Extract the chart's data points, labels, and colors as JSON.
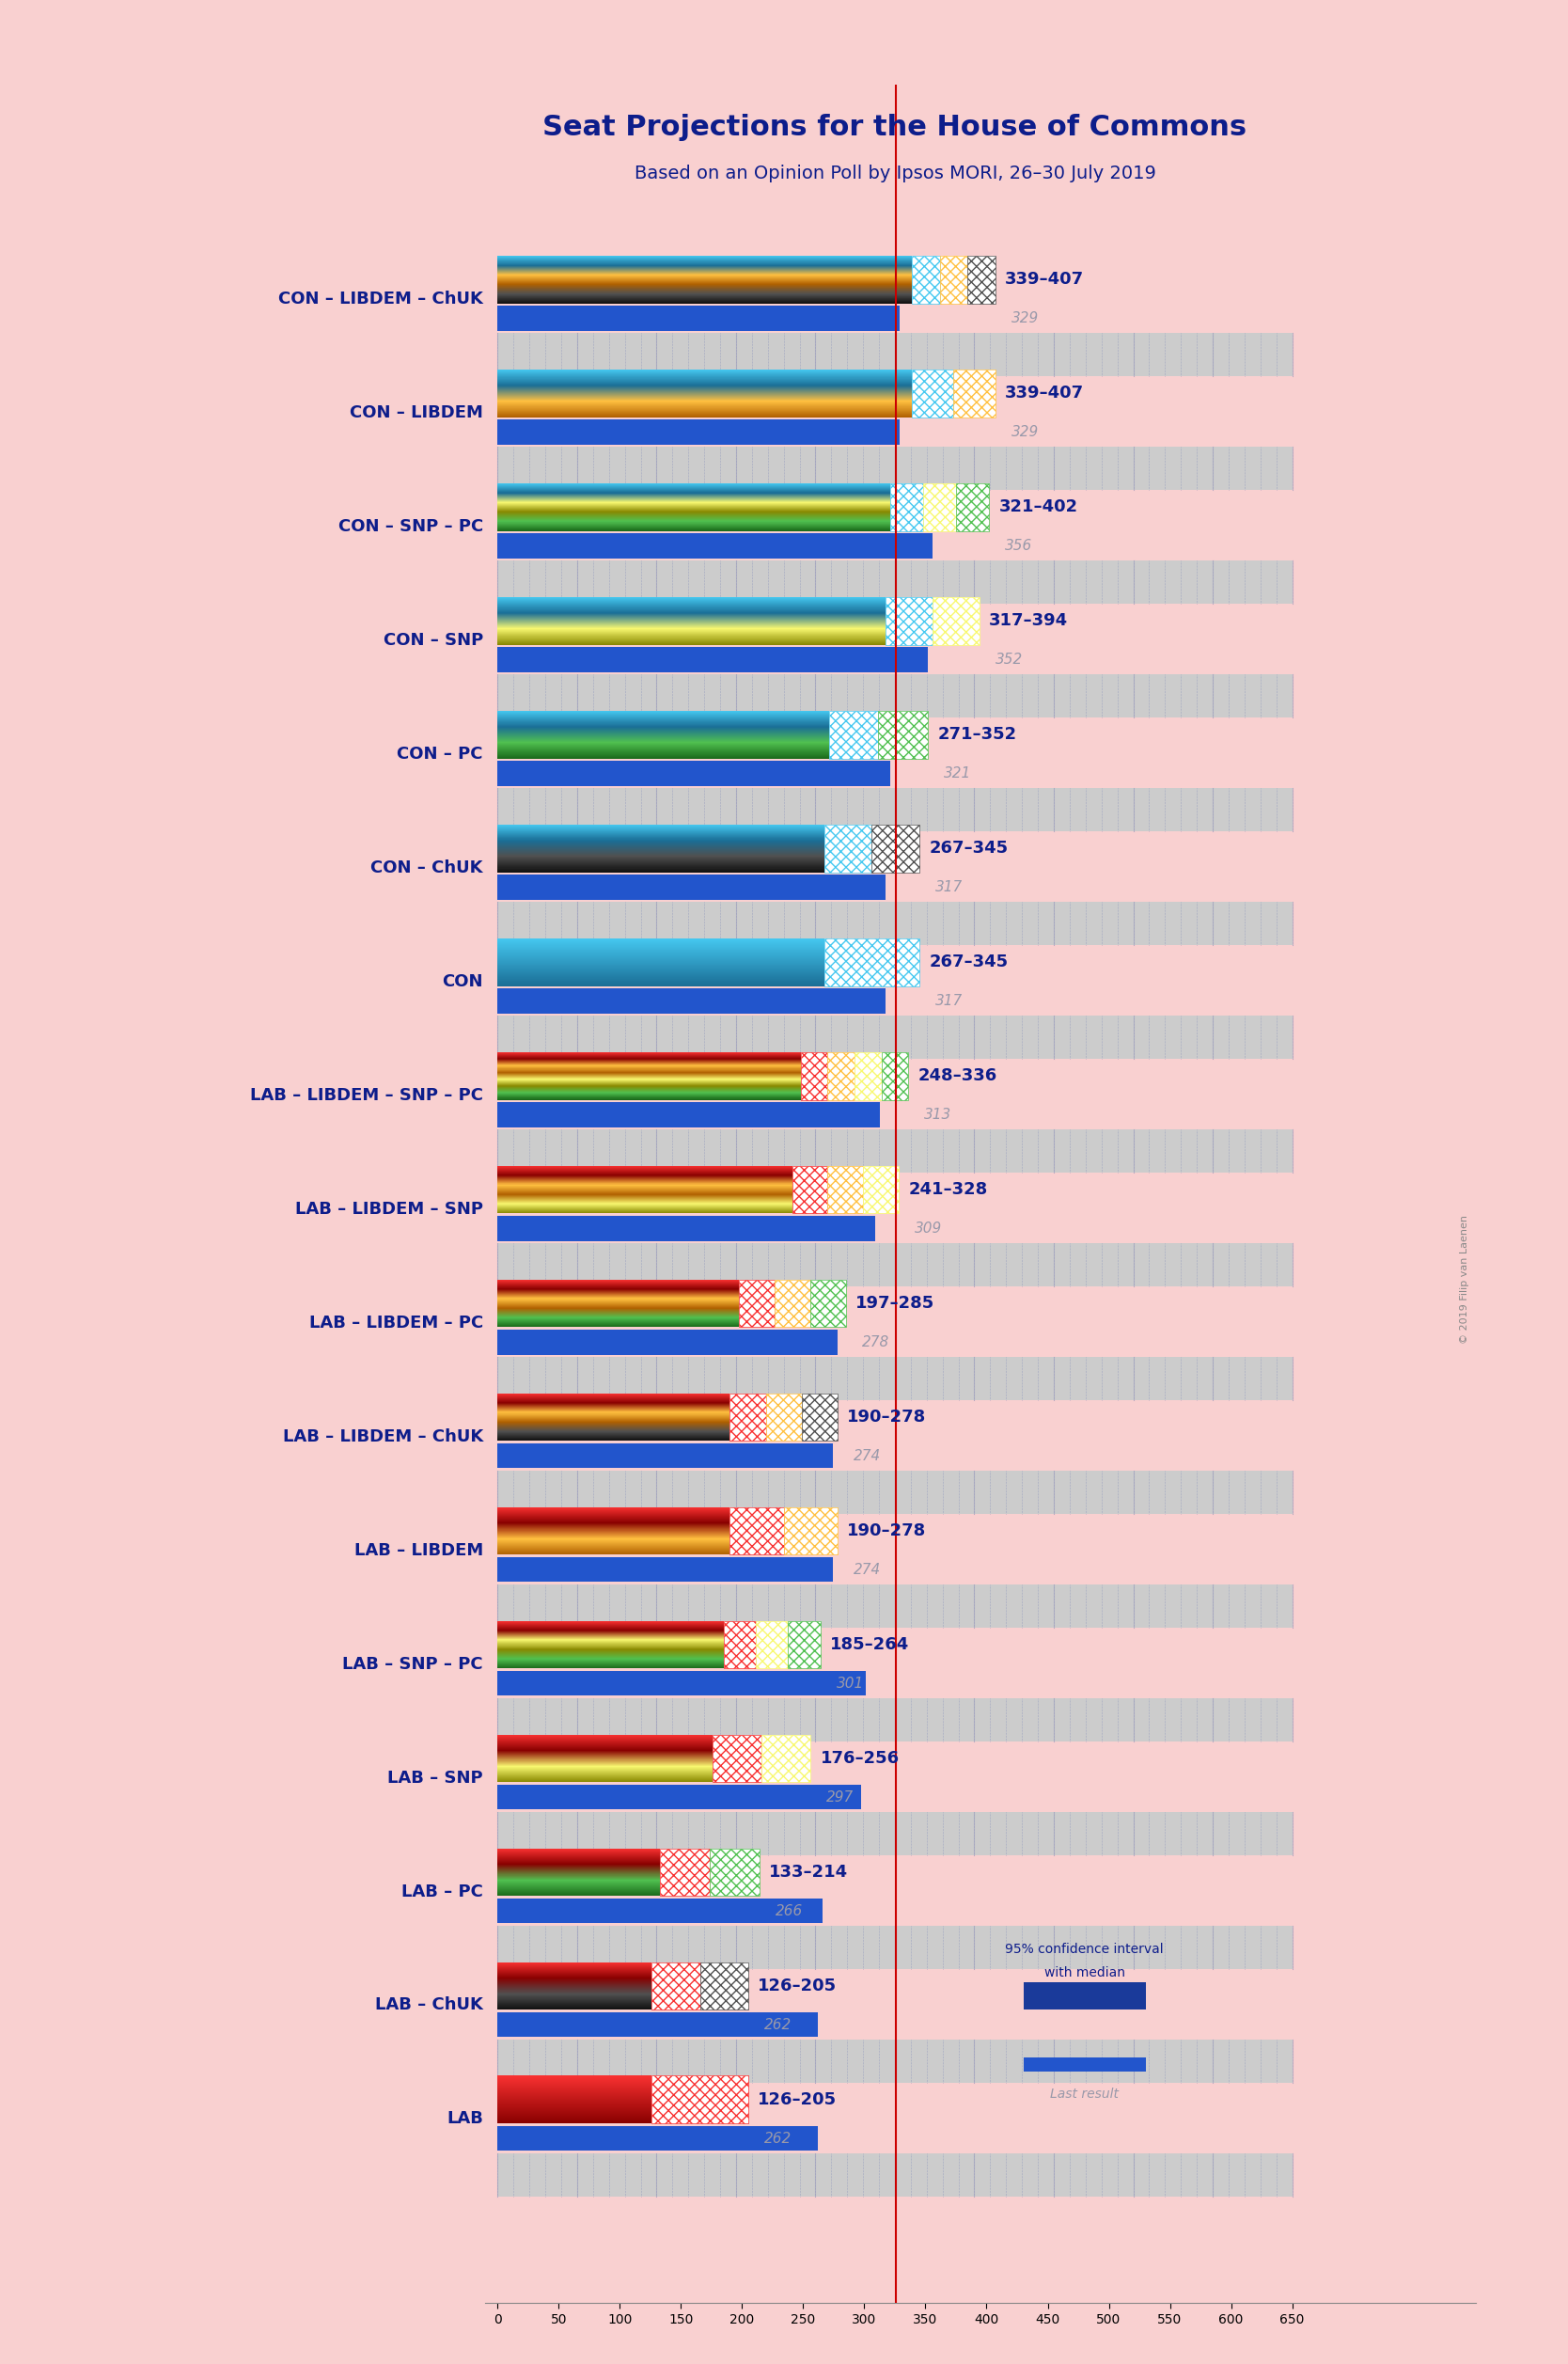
{
  "title": "Seat Projections for the House of Commons",
  "subtitle": "Based on an Opinion Poll by Ipsos MORI, 26–30 July 2019",
  "background_color": "#f9d0d0",
  "majority_line": 326,
  "axis_max": 650,
  "copyright": "© 2019 Filip van Laenen",
  "coalitions": [
    {
      "name": "CON – LIBDEM – ChUK",
      "label_range": "339–407",
      "label_median": "329",
      "ci_low": 339,
      "ci_high": 407,
      "median": 329,
      "parties": [
        "CON",
        "LIBDEM",
        "ChUK"
      ],
      "last_result": 329
    },
    {
      "name": "CON – LIBDEM",
      "label_range": "339–407",
      "label_median": "329",
      "ci_low": 339,
      "ci_high": 407,
      "median": 329,
      "parties": [
        "CON",
        "LIBDEM"
      ],
      "last_result": 329
    },
    {
      "name": "CON – SNP – PC",
      "label_range": "321–402",
      "label_median": "356",
      "ci_low": 321,
      "ci_high": 402,
      "median": 356,
      "parties": [
        "CON",
        "SNP",
        "PC"
      ],
      "last_result": 356
    },
    {
      "name": "CON – SNP",
      "label_range": "317–394",
      "label_median": "352",
      "ci_low": 317,
      "ci_high": 394,
      "median": 352,
      "parties": [
        "CON",
        "SNP"
      ],
      "last_result": 352
    },
    {
      "name": "CON – PC",
      "label_range": "271–352",
      "label_median": "321",
      "ci_low": 271,
      "ci_high": 352,
      "median": 321,
      "parties": [
        "CON",
        "PC"
      ],
      "last_result": 321
    },
    {
      "name": "CON – ChUK",
      "label_range": "267–345",
      "label_median": "317",
      "ci_low": 267,
      "ci_high": 345,
      "median": 317,
      "parties": [
        "CON",
        "ChUK"
      ],
      "last_result": 317
    },
    {
      "name": "CON",
      "label_range": "267–345",
      "label_median": "317",
      "ci_low": 267,
      "ci_high": 345,
      "median": 317,
      "parties": [
        "CON"
      ],
      "last_result": 317
    },
    {
      "name": "LAB – LIBDEM – SNP – PC",
      "label_range": "248–336",
      "label_median": "313",
      "ci_low": 248,
      "ci_high": 336,
      "median": 313,
      "parties": [
        "LAB",
        "LIBDEM",
        "SNP",
        "PC"
      ],
      "last_result": 313
    },
    {
      "name": "LAB – LIBDEM – SNP",
      "label_range": "241–328",
      "label_median": "309",
      "ci_low": 241,
      "ci_high": 328,
      "median": 309,
      "parties": [
        "LAB",
        "LIBDEM",
        "SNP"
      ],
      "last_result": 309
    },
    {
      "name": "LAB – LIBDEM – PC",
      "label_range": "197–285",
      "label_median": "278",
      "ci_low": 197,
      "ci_high": 285,
      "median": 278,
      "parties": [
        "LAB",
        "LIBDEM",
        "PC"
      ],
      "last_result": 278
    },
    {
      "name": "LAB – LIBDEM – ChUK",
      "label_range": "190–278",
      "label_median": "274",
      "ci_low": 190,
      "ci_high": 278,
      "median": 274,
      "parties": [
        "LAB",
        "LIBDEM",
        "ChUK"
      ],
      "last_result": 274
    },
    {
      "name": "LAB – LIBDEM",
      "label_range": "190–278",
      "label_median": "274",
      "ci_low": 190,
      "ci_high": 278,
      "median": 274,
      "parties": [
        "LAB",
        "LIBDEM"
      ],
      "last_result": 274
    },
    {
      "name": "LAB – SNP – PC",
      "label_range": "185–264",
      "label_median": "301",
      "ci_low": 185,
      "ci_high": 264,
      "median": 301,
      "parties": [
        "LAB",
        "SNP",
        "PC"
      ],
      "last_result": 301
    },
    {
      "name": "LAB – SNP",
      "label_range": "176–256",
      "label_median": "297",
      "ci_low": 176,
      "ci_high": 256,
      "median": 297,
      "parties": [
        "LAB",
        "SNP"
      ],
      "last_result": 297
    },
    {
      "name": "LAB – PC",
      "label_range": "133–214",
      "label_median": "266",
      "ci_low": 133,
      "ci_high": 214,
      "median": 266,
      "parties": [
        "LAB",
        "PC"
      ],
      "last_result": 266
    },
    {
      "name": "LAB – ChUK",
      "label_range": "126–205",
      "label_median": "262",
      "ci_low": 126,
      "ci_high": 205,
      "median": 262,
      "parties": [
        "LAB",
        "ChUK"
      ],
      "last_result": 262
    },
    {
      "name": "LAB",
      "label_range": "126–205",
      "label_median": "262",
      "ci_low": 126,
      "ci_high": 205,
      "median": 262,
      "parties": [
        "LAB"
      ],
      "last_result": 262
    }
  ],
  "party_colors": {
    "CON": [
      "#45C8F0",
      "#1A6E96"
    ],
    "LIBDEM": [
      "#FFC040",
      "#B06000"
    ],
    "SNP": [
      "#F8F870",
      "#888800"
    ],
    "PC": [
      "#50C050",
      "#1A6A1A"
    ],
    "ChUK": [
      "#505050",
      "#101010"
    ],
    "LAB": [
      "#F83030",
      "#880000"
    ]
  },
  "grid_color": "#BBBBCC",
  "grid_dot_color": "#4444AA",
  "last_result_color": "#2255CC"
}
